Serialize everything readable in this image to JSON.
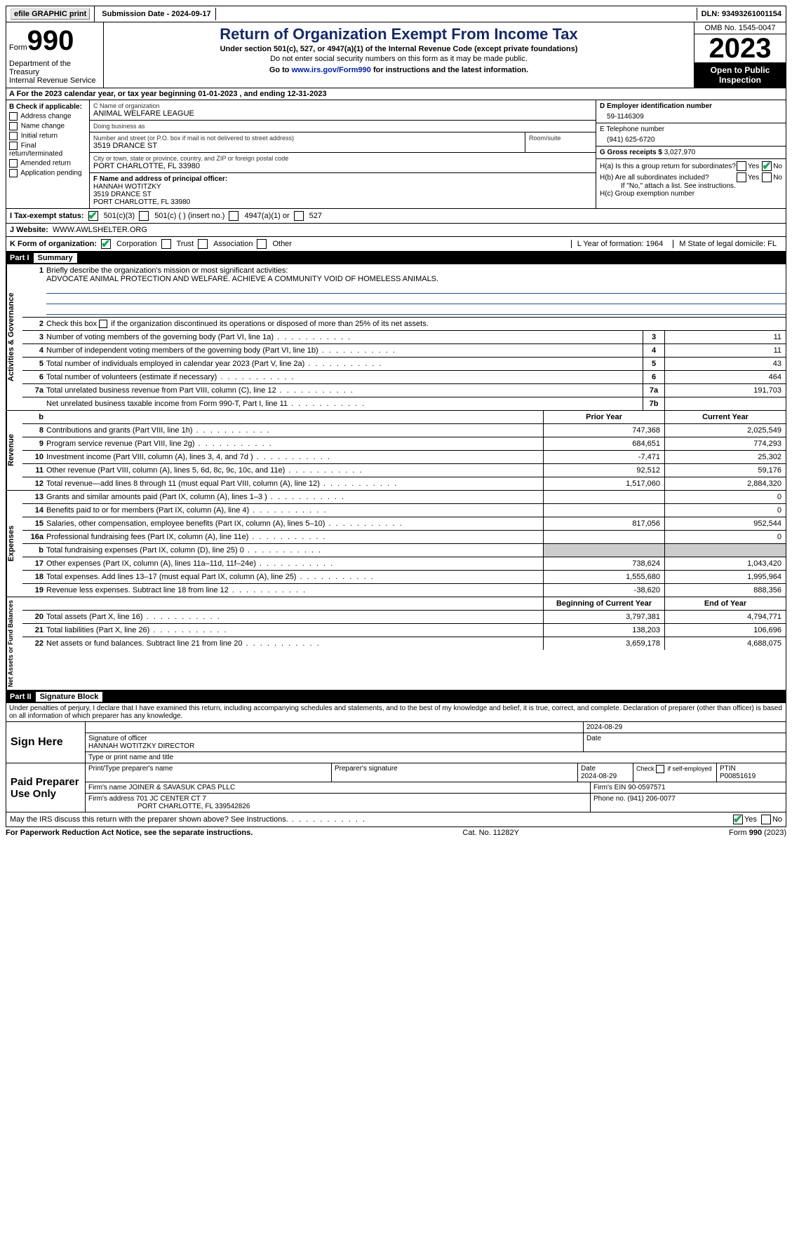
{
  "topbar": {
    "efile": "efile GRAPHIC print",
    "subdate_label": "Submission Date - ",
    "subdate": "2024-09-17",
    "dln_label": "DLN: ",
    "dln": "93493261001154"
  },
  "header": {
    "form_word": "Form",
    "form_num": "990",
    "title": "Return of Organization Exempt From Income Tax",
    "sub1": "Under section 501(c), 527, or 4947(a)(1) of the Internal Revenue Code (except private foundations)",
    "sub2": "Do not enter social security numbers on this form as it may be made public.",
    "instr": "Go to www.irs.gov/Form990 for instructions and the latest information.",
    "instr_link": "www.irs.gov/Form990",
    "dept": "Department of the Treasury\nInternal Revenue Service",
    "omb": "OMB No. 1545-0047",
    "year": "2023",
    "open": "Open to Public Inspection"
  },
  "rowA": "A For the 2023 calendar year, or tax year beginning 01-01-2023   , and ending 12-31-2023",
  "colB": {
    "hdr": "B Check if applicable:",
    "items": [
      "Address change",
      "Name change",
      "Initial return",
      "Final return/terminated",
      "Amended return",
      "Application pending"
    ]
  },
  "orgbox": {
    "c_label": "C Name of organization",
    "c_name": "ANIMAL WELFARE LEAGUE",
    "dba_label": "Doing business as",
    "dba": "",
    "addr_label": "Number and street (or P.O. box if mail is not delivered to street address)",
    "room_label": "Room/suite",
    "addr": "3519 DRANCE ST",
    "city_label": "City or town, state or province, country, and ZIP or foreign postal code",
    "city": "PORT CHARLOTTE, FL  33980",
    "f_label": "F  Name and address of principal officer:",
    "f_name": "HANNAH WOTITZKY",
    "f_addr1": "3519 DRANCE ST",
    "f_addr2": "PORT CHARLOTTE, FL  33980"
  },
  "rightcol": {
    "d_label": "D Employer identification number",
    "d_val": "59-1146309",
    "e_label": "E Telephone number",
    "e_val": "(941) 625-6720",
    "g_label": "G Gross receipts $ ",
    "g_val": "3,027,970",
    "ha": "H(a)  Is this a group return for subordinates?",
    "hb": "H(b)  Are all subordinates included?",
    "hb_note": "If \"No,\" attach a list. See instructions.",
    "hc": "H(c)  Group exemption number  ",
    "yes": "Yes",
    "no": "No"
  },
  "rowI": {
    "label": "I    Tax-exempt status:",
    "o1": "501(c)(3)",
    "o2": "501(c) (  ) (insert no.)",
    "o3": "4947(a)(1) or",
    "o4": "527"
  },
  "rowJ": {
    "label": "J    Website: ",
    "val": "WWW.AWLSHELTER.ORG"
  },
  "rowK": {
    "label": "K Form of organization:",
    "o1": "Corporation",
    "o2": "Trust",
    "o3": "Association",
    "o4": "Other",
    "l": "L Year of formation: 1964",
    "m": "M State of legal domicile: FL"
  },
  "parts": {
    "p1": "Part I",
    "p1t": "Summary",
    "p2": "Part II",
    "p2t": "Signature Block"
  },
  "summary": {
    "vtabs": [
      "Activities & Governance",
      "Revenue",
      "Expenses",
      "Net Assets or Fund Balances"
    ],
    "l1": "Briefly describe the organization's mission or most significant activities:",
    "mission": "ADVOCATE ANIMAL PROTECTION AND WELFARE. ACHIEVE A COMMUNITY VOID OF HOMELESS ANIMALS.",
    "l2": "Check this box       if the organization discontinued its operations or disposed of more than 25% of its net assets.",
    "lines_ag": [
      {
        "n": "3",
        "t": "Number of voting members of the governing body (Part VI, line 1a)",
        "b": "3",
        "v": "11"
      },
      {
        "n": "4",
        "t": "Number of independent voting members of the governing body (Part VI, line 1b)",
        "b": "4",
        "v": "11"
      },
      {
        "n": "5",
        "t": "Total number of individuals employed in calendar year 2023 (Part V, line 2a)",
        "b": "5",
        "v": "43"
      },
      {
        "n": "6",
        "t": "Total number of volunteers (estimate if necessary)",
        "b": "6",
        "v": "464"
      },
      {
        "n": "7a",
        "t": "Total unrelated business revenue from Part VIII, column (C), line 12",
        "b": "7a",
        "v": "191,703"
      },
      {
        "n": "",
        "t": "Net unrelated business taxable income from Form 990-T, Part I, line 11",
        "b": "7b",
        "v": ""
      }
    ],
    "hdr_b": "b",
    "hdr_prior": "Prior Year",
    "hdr_curr": "Current Year",
    "rev": [
      {
        "n": "8",
        "t": "Contributions and grants (Part VIII, line 1h)",
        "p": "747,368",
        "c": "2,025,549"
      },
      {
        "n": "9",
        "t": "Program service revenue (Part VIII, line 2g)",
        "p": "684,651",
        "c": "774,293"
      },
      {
        "n": "10",
        "t": "Investment income (Part VIII, column (A), lines 3, 4, and 7d )",
        "p": "-7,471",
        "c": "25,302"
      },
      {
        "n": "11",
        "t": "Other revenue (Part VIII, column (A), lines 5, 6d, 8c, 9c, 10c, and 11e)",
        "p": "92,512",
        "c": "59,176"
      },
      {
        "n": "12",
        "t": "Total revenue—add lines 8 through 11 (must equal Part VIII, column (A), line 12)",
        "p": "1,517,060",
        "c": "2,884,320"
      }
    ],
    "exp": [
      {
        "n": "13",
        "t": "Grants and similar amounts paid (Part IX, column (A), lines 1–3 )",
        "p": "",
        "c": "0"
      },
      {
        "n": "14",
        "t": "Benefits paid to or for members (Part IX, column (A), line 4)",
        "p": "",
        "c": "0"
      },
      {
        "n": "15",
        "t": "Salaries, other compensation, employee benefits (Part IX, column (A), lines 5–10)",
        "p": "817,056",
        "c": "952,544"
      },
      {
        "n": "16a",
        "t": "Professional fundraising fees (Part IX, column (A), line 11e)",
        "p": "",
        "c": "0"
      },
      {
        "n": "b",
        "t": "Total fundraising expenses (Part IX, column (D), line 25) 0",
        "p": "SHADE",
        "c": "SHADE"
      },
      {
        "n": "17",
        "t": "Other expenses (Part IX, column (A), lines 11a–11d, 11f–24e)",
        "p": "738,624",
        "c": "1,043,420"
      },
      {
        "n": "18",
        "t": "Total expenses. Add lines 13–17 (must equal Part IX, column (A), line 25)",
        "p": "1,555,680",
        "c": "1,995,964"
      },
      {
        "n": "19",
        "t": "Revenue less expenses. Subtract line 18 from line 12",
        "p": "-38,620",
        "c": "888,356"
      }
    ],
    "hdr_beg": "Beginning of Current Year",
    "hdr_end": "End of Year",
    "net": [
      {
        "n": "20",
        "t": "Total assets (Part X, line 16)",
        "p": "3,797,381",
        "c": "4,794,771"
      },
      {
        "n": "21",
        "t": "Total liabilities (Part X, line 26)",
        "p": "138,203",
        "c": "106,696"
      },
      {
        "n": "22",
        "t": "Net assets or fund balances. Subtract line 21 from line 20",
        "p": "3,659,178",
        "c": "4,688,075"
      }
    ]
  },
  "sig": {
    "perjury": "Under penalties of perjury, I declare that I have examined this return, including accompanying schedules and statements, and to the best of my knowledge and belief, it is true, correct, and complete. Declaration of preparer (other than officer) is based on all information of which preparer has any knowledge.",
    "sign_here": "Sign Here",
    "sig_officer": "Signature of officer",
    "officer_name": "HANNAH WOTITZKY  DIRECTOR",
    "type_label": "Type or print name and title",
    "date_label": "Date",
    "date1": "2024-08-29",
    "paid": "Paid Preparer Use Only",
    "prep_name_label": "Print/Type preparer's name",
    "prep_sig_label": "Preparer's signature",
    "prep_date": "2024-08-29",
    "check_self": "Check        if self-employed",
    "ptin_label": "PTIN",
    "ptin": "P00851619",
    "firm_name_label": "Firm's name   ",
    "firm_name": "JOINER & SAVASUK CPAS PLLC",
    "firm_ein_label": "Firm's EIN  ",
    "firm_ein": "90-0597571",
    "firm_addr_label": "Firm's address ",
    "firm_addr1": "701 JC CENTER CT 7",
    "firm_addr2": "PORT CHARLOTTE, FL  339542826",
    "phone_label": "Phone no. ",
    "phone": "(941) 206-0077",
    "discuss": "May the IRS discuss this return with the preparer shown above? See Instructions."
  },
  "footer": {
    "pra": "For Paperwork Reduction Act Notice, see the separate instructions.",
    "cat": "Cat. No. 11282Y",
    "form": "Form 990 (2023)"
  }
}
